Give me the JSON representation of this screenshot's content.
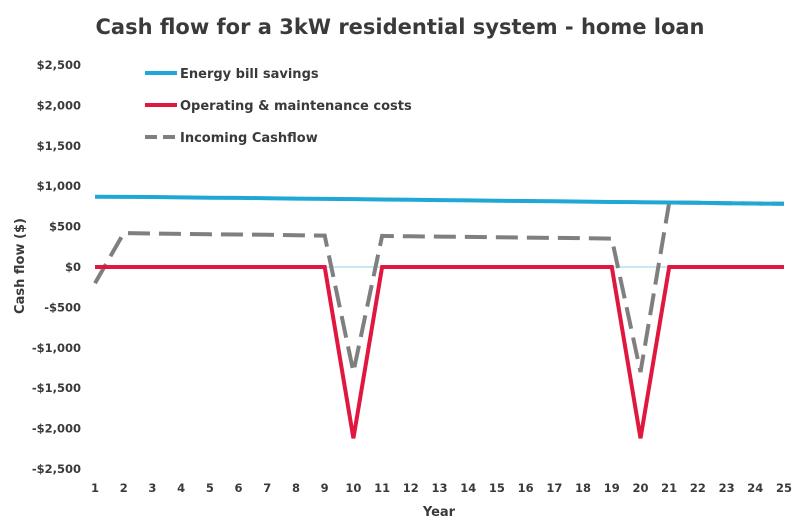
{
  "chart_data": {
    "type": "line",
    "title": "Cash flow for a 3kW residential system - home loan",
    "xlabel": "Year",
    "ylabel": "Cash flow ($)",
    "x": [
      1,
      2,
      3,
      4,
      5,
      6,
      7,
      8,
      9,
      10,
      11,
      12,
      13,
      14,
      15,
      16,
      17,
      18,
      19,
      20,
      21,
      22,
      23,
      24,
      25
    ],
    "ylim": [
      -2500,
      2500
    ],
    "y_ticks": [
      2500,
      2000,
      1500,
      1000,
      500,
      0,
      -500,
      -1000,
      -1500,
      -2000,
      -2500
    ],
    "y_tick_labels": [
      "$2,500",
      "$2,000",
      "$1,500",
      "$1,000",
      "$500",
      "$0",
      "-$500",
      "-$1,000",
      "-$1,500",
      "-$2,000",
      "-$2,500"
    ],
    "grid": false,
    "legend_position": "top-left",
    "series": [
      {
        "name": "Energy bill savings",
        "color": "#1fa8d6",
        "style": "solid",
        "values": [
          870,
          868,
          866,
          862,
          858,
          855,
          851,
          847,
          843,
          840,
          836,
          832,
          828,
          824,
          821,
          817,
          813,
          809,
          805,
          802,
          798,
          794,
          790,
          786,
          782
        ]
      },
      {
        "name": "Operating & maintenance costs",
        "color": "#e0173f",
        "style": "solid",
        "values": [
          0,
          0,
          0,
          0,
          0,
          0,
          0,
          0,
          0,
          -2120,
          0,
          0,
          0,
          0,
          0,
          0,
          0,
          0,
          0,
          -2120,
          0,
          0,
          0,
          0,
          0
        ]
      },
      {
        "name": "Incoming Cashflow",
        "color": "#7f7f7f",
        "style": "dashed",
        "values": [
          -200,
          420,
          415,
          410,
          405,
          402,
          398,
          393,
          388,
          -1300,
          385,
          380,
          376,
          372,
          368,
          364,
          360,
          356,
          350,
          -1300,
          798,
          794,
          790,
          786,
          782
        ]
      }
    ]
  }
}
